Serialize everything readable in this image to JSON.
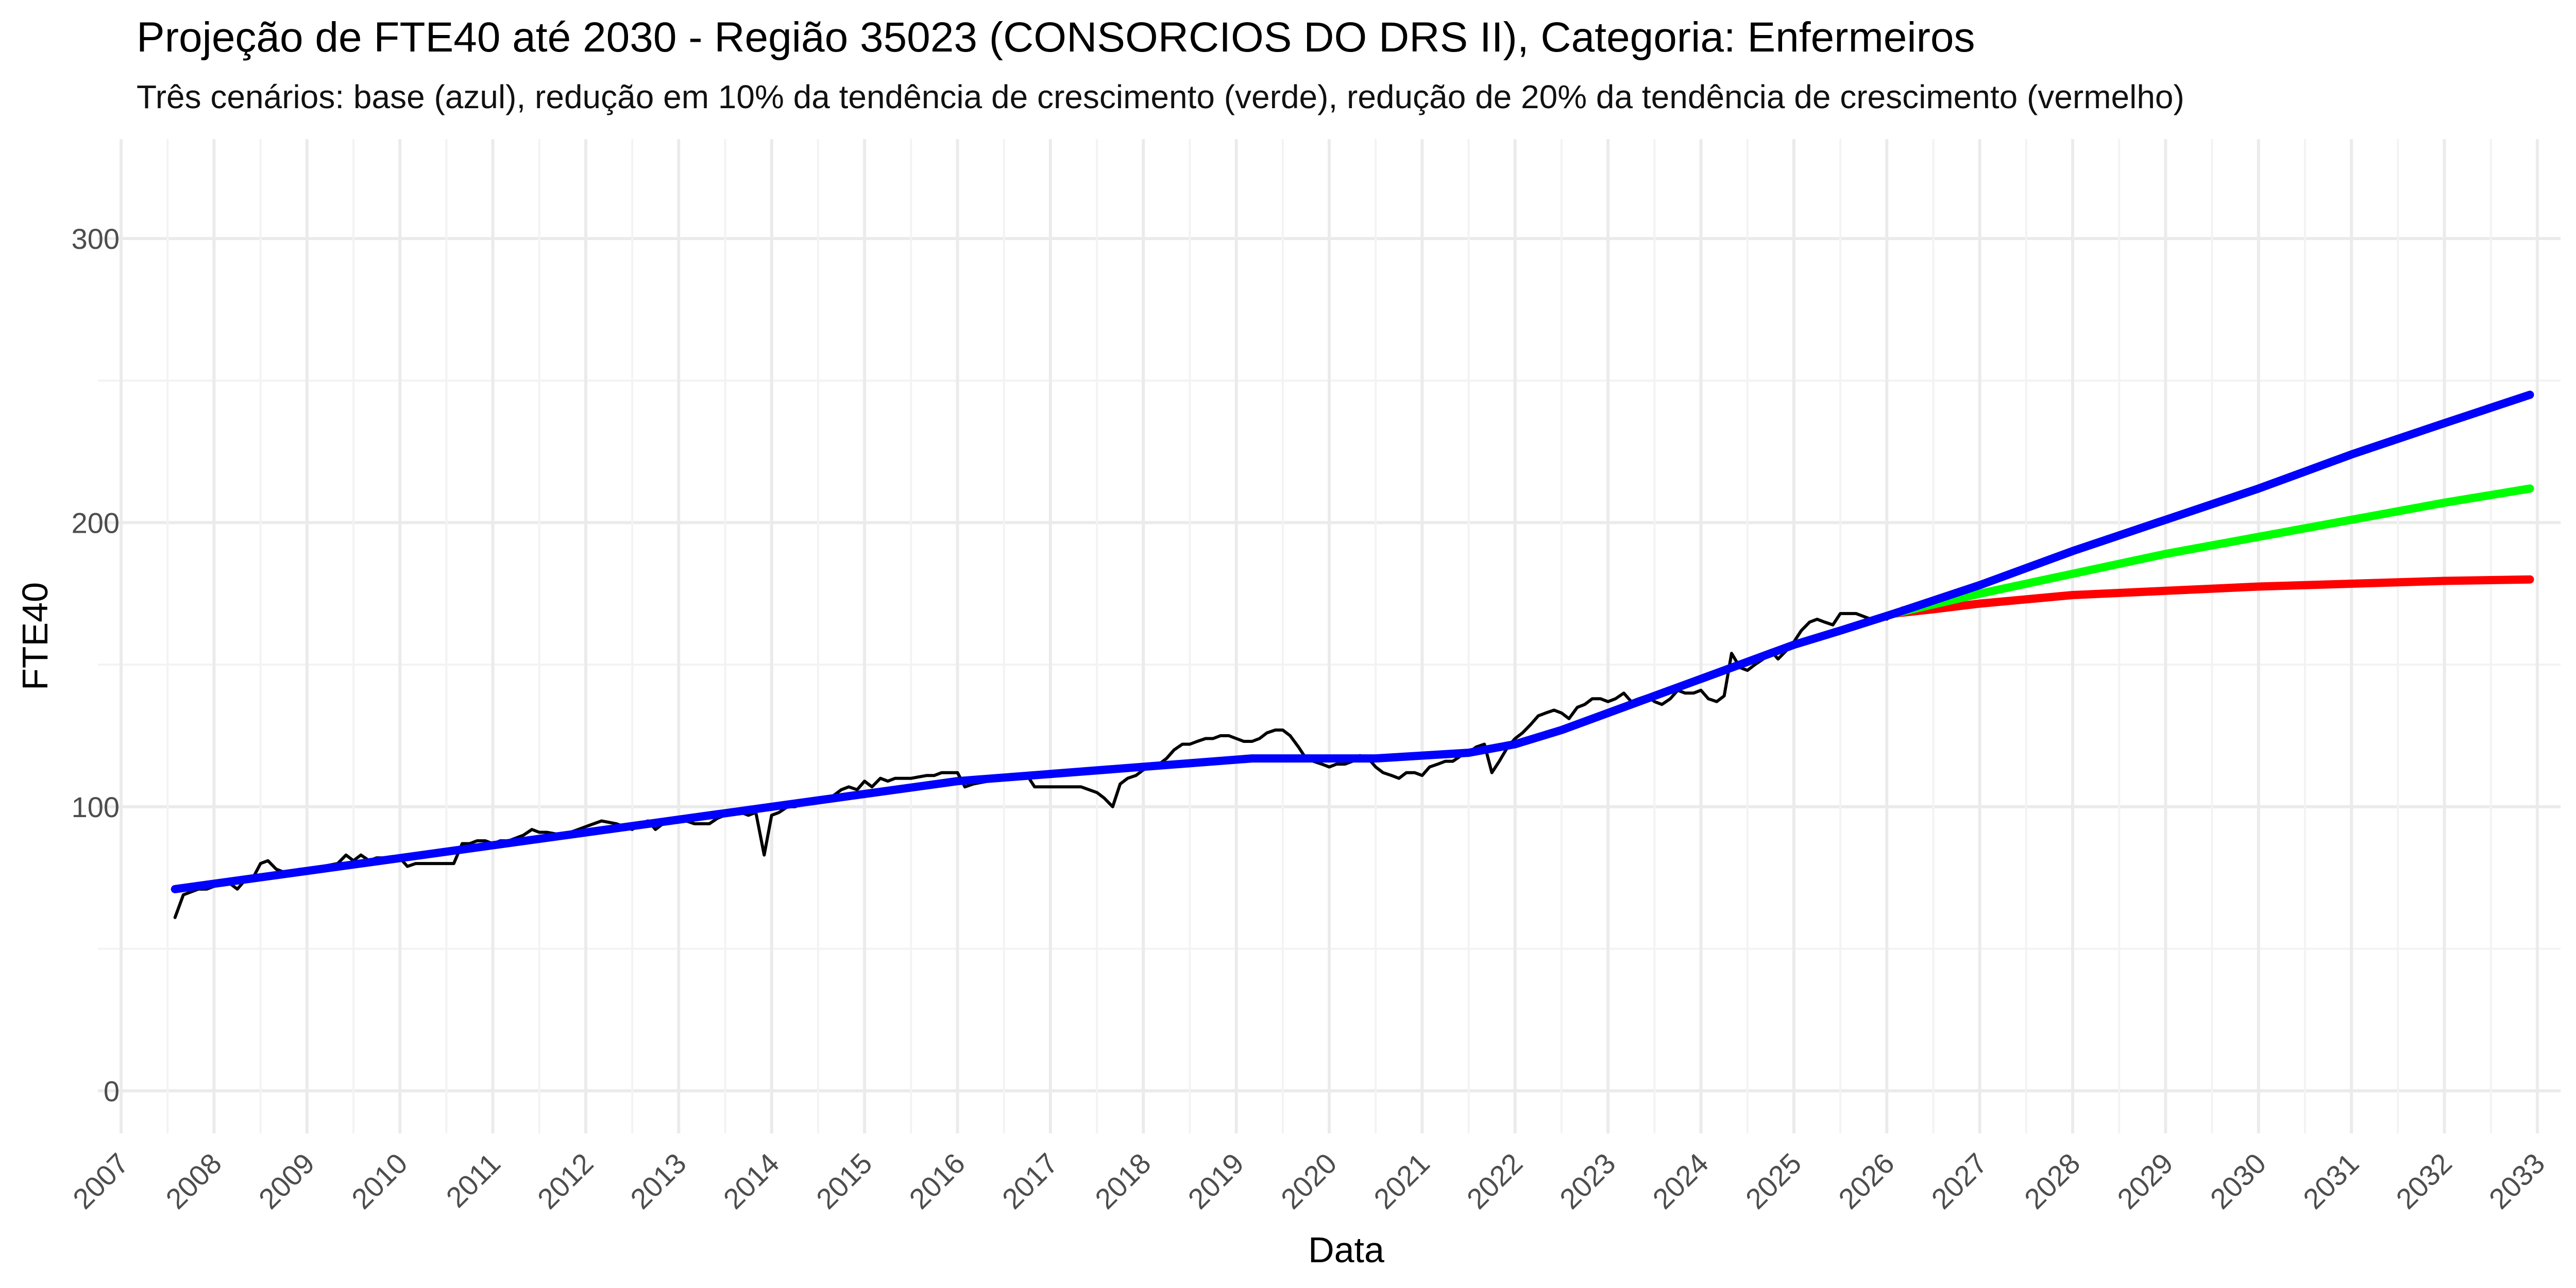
{
  "chart_data": {
    "type": "line",
    "title": "Projeção de FTE40 até 2030 - Região 35023 (CONSORCIOS DO DRS II), Categoria: Enfermeiros",
    "subtitle": "Três cenários: base (azul), redução em 10% da tendência de crescimento (verde), redução de 20% da tendência de crescimento (vermelho)",
    "xlabel": "Data",
    "ylabel": "FTE40",
    "xlim": [
      2006.75,
      2033.25
    ],
    "ylim": [
      -15,
      335
    ],
    "x_ticks": [
      "2007",
      "2008",
      "2009",
      "2010",
      "2011",
      "2012",
      "2013",
      "2014",
      "2015",
      "2016",
      "2017",
      "2018",
      "2019",
      "2020",
      "2021",
      "2022",
      "2023",
      "2024",
      "2025",
      "2026",
      "2027",
      "2028",
      "2029",
      "2030",
      "2031",
      "2032",
      "2033"
    ],
    "y_ticks": [
      0,
      100,
      200,
      300
    ],
    "grid": true,
    "series": [
      {
        "color": "#000000",
        "points": [
          [
            2007.58,
            61
          ],
          [
            2007.67,
            69
          ],
          [
            2007.75,
            70
          ],
          [
            2007.83,
            71
          ],
          [
            2007.92,
            71
          ],
          [
            2008.0,
            72
          ],
          [
            2008.08,
            74
          ],
          [
            2008.17,
            73
          ],
          [
            2008.25,
            71
          ],
          [
            2008.33,
            74
          ],
          [
            2008.42,
            75
          ],
          [
            2008.5,
            80
          ],
          [
            2008.58,
            81
          ],
          [
            2008.67,
            78
          ],
          [
            2008.75,
            77
          ],
          [
            2008.83,
            77
          ],
          [
            2008.92,
            78
          ],
          [
            2009.0,
            78
          ],
          [
            2009.17,
            79
          ],
          [
            2009.33,
            80
          ],
          [
            2009.42,
            83
          ],
          [
            2009.5,
            81
          ],
          [
            2009.58,
            83
          ],
          [
            2009.67,
            81
          ],
          [
            2009.75,
            82
          ],
          [
            2009.83,
            82
          ],
          [
            2009.92,
            81
          ],
          [
            2010.0,
            82
          ],
          [
            2010.08,
            79
          ],
          [
            2010.17,
            80
          ],
          [
            2010.33,
            80
          ],
          [
            2010.5,
            80
          ],
          [
            2010.58,
            80
          ],
          [
            2010.67,
            87
          ],
          [
            2010.75,
            87
          ],
          [
            2010.83,
            88
          ],
          [
            2010.92,
            88
          ],
          [
            2011.0,
            87
          ],
          [
            2011.08,
            88
          ],
          [
            2011.17,
            88
          ],
          [
            2011.25,
            89
          ],
          [
            2011.33,
            90
          ],
          [
            2011.42,
            92
          ],
          [
            2011.5,
            91
          ],
          [
            2011.58,
            91
          ],
          [
            2011.75,
            90
          ],
          [
            2011.92,
            92
          ],
          [
            2012.0,
            93
          ],
          [
            2012.17,
            95
          ],
          [
            2012.33,
            94
          ],
          [
            2012.5,
            92
          ],
          [
            2012.58,
            94
          ],
          [
            2012.67,
            95
          ],
          [
            2012.75,
            92
          ],
          [
            2012.83,
            94
          ],
          [
            2013.0,
            96
          ],
          [
            2013.08,
            95
          ],
          [
            2013.17,
            94
          ],
          [
            2013.33,
            94
          ],
          [
            2013.42,
            96
          ],
          [
            2013.58,
            98
          ],
          [
            2013.67,
            98
          ],
          [
            2013.75,
            97
          ],
          [
            2013.83,
            98
          ],
          [
            2013.92,
            83
          ],
          [
            2014.0,
            97
          ],
          [
            2014.08,
            98
          ],
          [
            2014.17,
            100
          ],
          [
            2014.25,
            100
          ],
          [
            2014.33,
            101
          ],
          [
            2014.5,
            102
          ],
          [
            2014.67,
            104
          ],
          [
            2014.75,
            106
          ],
          [
            2014.83,
            107
          ],
          [
            2014.92,
            106
          ],
          [
            2015.0,
            109
          ],
          [
            2015.08,
            107
          ],
          [
            2015.17,
            110
          ],
          [
            2015.25,
            109
          ],
          [
            2015.33,
            110
          ],
          [
            2015.5,
            110
          ],
          [
            2015.67,
            111
          ],
          [
            2015.75,
            111
          ],
          [
            2015.83,
            112
          ],
          [
            2015.92,
            112
          ],
          [
            2016.0,
            112
          ],
          [
            2016.08,
            107
          ],
          [
            2016.17,
            108
          ],
          [
            2016.33,
            109
          ],
          [
            2016.5,
            110
          ],
          [
            2016.67,
            110
          ],
          [
            2016.75,
            111
          ],
          [
            2016.83,
            107
          ],
          [
            2017.0,
            107
          ],
          [
            2017.17,
            107
          ],
          [
            2017.33,
            107
          ],
          [
            2017.5,
            105
          ],
          [
            2017.58,
            103
          ],
          [
            2017.67,
            100
          ],
          [
            2017.75,
            108
          ],
          [
            2017.83,
            110
          ],
          [
            2017.92,
            111
          ],
          [
            2018.0,
            113
          ],
          [
            2018.17,
            115
          ],
          [
            2018.25,
            117
          ],
          [
            2018.33,
            120
          ],
          [
            2018.42,
            122
          ],
          [
            2018.5,
            122
          ],
          [
            2018.58,
            123
          ],
          [
            2018.67,
            124
          ],
          [
            2018.75,
            124
          ],
          [
            2018.83,
            125
          ],
          [
            2018.92,
            125
          ],
          [
            2019.0,
            124
          ],
          [
            2019.08,
            123
          ],
          [
            2019.17,
            123
          ],
          [
            2019.25,
            124
          ],
          [
            2019.33,
            126
          ],
          [
            2019.42,
            127
          ],
          [
            2019.5,
            127
          ],
          [
            2019.58,
            125
          ],
          [
            2019.67,
            121
          ],
          [
            2019.75,
            117
          ],
          [
            2019.83,
            116
          ],
          [
            2019.92,
            115
          ],
          [
            2020.0,
            114
          ],
          [
            2020.08,
            115
          ],
          [
            2020.17,
            115
          ],
          [
            2020.25,
            116
          ],
          [
            2020.33,
            118
          ],
          [
            2020.42,
            117
          ],
          [
            2020.5,
            114
          ],
          [
            2020.58,
            112
          ],
          [
            2020.67,
            111
          ],
          [
            2020.75,
            110
          ],
          [
            2020.83,
            112
          ],
          [
            2020.92,
            112
          ],
          [
            2021.0,
            111
          ],
          [
            2021.08,
            114
          ],
          [
            2021.17,
            115
          ],
          [
            2021.25,
            116
          ],
          [
            2021.33,
            116
          ],
          [
            2021.42,
            118
          ],
          [
            2021.5,
            119
          ],
          [
            2021.58,
            121
          ],
          [
            2021.67,
            122
          ],
          [
            2021.75,
            112
          ],
          [
            2021.83,
            116
          ],
          [
            2021.92,
            121
          ],
          [
            2022.0,
            124
          ],
          [
            2022.08,
            126
          ],
          [
            2022.17,
            129
          ],
          [
            2022.25,
            132
          ],
          [
            2022.33,
            133
          ],
          [
            2022.42,
            134
          ],
          [
            2022.5,
            133
          ],
          [
            2022.58,
            131
          ],
          [
            2022.67,
            135
          ],
          [
            2022.75,
            136
          ],
          [
            2022.83,
            138
          ],
          [
            2022.92,
            138
          ],
          [
            2023.0,
            137
          ],
          [
            2023.08,
            138
          ],
          [
            2023.17,
            140
          ],
          [
            2023.25,
            137
          ],
          [
            2023.33,
            138
          ],
          [
            2023.42,
            139
          ],
          [
            2023.5,
            137
          ],
          [
            2023.58,
            136
          ],
          [
            2023.67,
            138
          ],
          [
            2023.75,
            141
          ],
          [
            2023.83,
            140
          ],
          [
            2023.92,
            140
          ],
          [
            2024.0,
            141
          ],
          [
            2024.08,
            138
          ],
          [
            2024.17,
            137
          ],
          [
            2024.25,
            139
          ],
          [
            2024.33,
            154
          ],
          [
            2024.42,
            149
          ],
          [
            2024.5,
            148
          ],
          [
            2024.58,
            150
          ],
          [
            2024.67,
            152
          ],
          [
            2024.75,
            155
          ],
          [
            2024.83,
            152
          ],
          [
            2024.92,
            155
          ],
          [
            2025.0,
            158
          ],
          [
            2025.08,
            162
          ],
          [
            2025.17,
            165
          ],
          [
            2025.25,
            166
          ],
          [
            2025.33,
            165
          ],
          [
            2025.42,
            164
          ],
          [
            2025.5,
            168
          ],
          [
            2025.58,
            168
          ],
          [
            2025.67,
            168
          ],
          [
            2025.75,
            167
          ],
          [
            2025.83,
            166
          ],
          [
            2025.92,
            167
          ],
          [
            2026.0,
            166
          ],
          [
            2026.08,
            168
          ],
          [
            2026.17,
            170
          ]
        ]
      },
      {
        "color": "#0000ff",
        "points": [
          [
            2007.58,
            71
          ],
          [
            2016.0,
            109
          ],
          [
            2019.17,
            117
          ],
          [
            2020.5,
            117
          ],
          [
            2021.5,
            119
          ],
          [
            2022.0,
            122
          ],
          [
            2022.5,
            127
          ],
          [
            2023.0,
            133
          ],
          [
            2023.5,
            139
          ],
          [
            2024.0,
            145
          ],
          [
            2024.5,
            151
          ],
          [
            2025.0,
            157
          ],
          [
            2025.5,
            162
          ],
          [
            2026.08,
            168
          ],
          [
            2027.0,
            178
          ],
          [
            2028.0,
            190
          ],
          [
            2029.0,
            201
          ],
          [
            2030.0,
            212
          ],
          [
            2031.0,
            224
          ],
          [
            2032.0,
            235
          ],
          [
            2032.92,
            245
          ]
        ]
      },
      {
        "color": "#00ff00",
        "points": [
          [
            2026.08,
            168
          ],
          [
            2027.0,
            175
          ],
          [
            2028.0,
            182
          ],
          [
            2029.0,
            189
          ],
          [
            2030.0,
            195
          ],
          [
            2031.0,
            201
          ],
          [
            2032.0,
            207
          ],
          [
            2032.92,
            212
          ]
        ]
      },
      {
        "color": "#ff0000",
        "points": [
          [
            2026.08,
            168
          ],
          [
            2026.5,
            169.5
          ],
          [
            2027.0,
            171.5
          ],
          [
            2027.5,
            173
          ],
          [
            2028.0,
            174.5
          ],
          [
            2029.0,
            176
          ],
          [
            2030.0,
            177.5
          ],
          [
            2031.0,
            178.5
          ],
          [
            2032.0,
            179.5
          ],
          [
            2032.92,
            180
          ]
        ]
      }
    ]
  }
}
